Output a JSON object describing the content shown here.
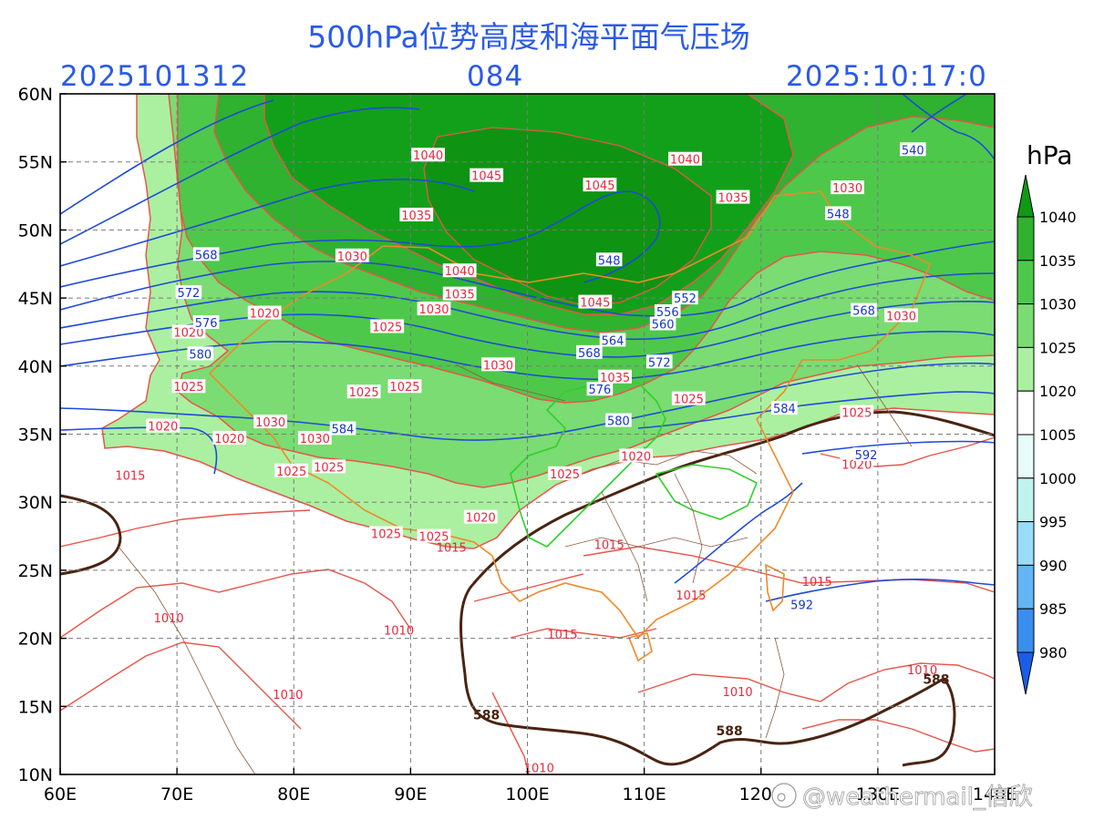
{
  "title": "500hPa位势高度和海平面气压场",
  "run": {
    "init": "2025101312",
    "forecast_hour": "084",
    "valid": "2025:10:17:0"
  },
  "axes": {
    "lon_ticks": [
      "60E",
      "70E",
      "80E",
      "90E",
      "100E",
      "110E",
      "120E",
      "130E",
      "140E"
    ],
    "lat_ticks": [
      "60N",
      "55N",
      "50N",
      "45N",
      "40N",
      "35N",
      "30N",
      "25N",
      "20N",
      "15N",
      "10N"
    ]
  },
  "colorbar": {
    "unit": "hPa",
    "levels": [
      "1040",
      "1035",
      "1030",
      "1025",
      "1020",
      "1005",
      "1000",
      "995",
      "990",
      "985",
      "980"
    ],
    "colors": [
      "#0e9a14",
      "#2eb230",
      "#4ec84a",
      "#7adc72",
      "#aaf0a0",
      "#ffffff",
      "#e6fcf8",
      "#c0f2ee",
      "#98dcf8",
      "#62b6f4",
      "#3a8ef0",
      "#1a5ee6"
    ]
  },
  "pressure_labels": {
    "isobars": [
      {
        "text": "1040",
        "lon": 91.5,
        "lat": 55.5
      },
      {
        "text": "1045",
        "lon": 96.5,
        "lat": 54.0
      },
      {
        "text": "1040",
        "lon": 113.5,
        "lat": 55.2
      },
      {
        "text": "1045",
        "lon": 106.2,
        "lat": 53.3
      },
      {
        "text": "1035",
        "lon": 90.5,
        "lat": 51.1
      },
      {
        "text": "1035",
        "lon": 117.6,
        "lat": 52.4
      },
      {
        "text": "1030",
        "lon": 127.4,
        "lat": 53.1
      },
      {
        "text": "1030",
        "lon": 85.0,
        "lat": 48.1
      },
      {
        "text": "1040",
        "lon": 94.2,
        "lat": 47.0
      },
      {
        "text": "1035",
        "lon": 94.2,
        "lat": 45.3
      },
      {
        "text": "1045",
        "lon": 105.8,
        "lat": 44.7
      },
      {
        "text": "1030",
        "lon": 92.0,
        "lat": 44.2
      },
      {
        "text": "1020",
        "lon": 77.5,
        "lat": 43.9
      },
      {
        "text": "1025",
        "lon": 88.0,
        "lat": 42.9
      },
      {
        "text": "1020",
        "lon": 71.0,
        "lat": 42.5
      },
      {
        "text": "1030",
        "lon": 132.0,
        "lat": 43.7
      },
      {
        "text": "1030",
        "lon": 97.5,
        "lat": 40.1
      },
      {
        "text": "1035",
        "lon": 107.5,
        "lat": 39.2
      },
      {
        "text": "1025",
        "lon": 71.0,
        "lat": 38.5
      },
      {
        "text": "1025",
        "lon": 86.0,
        "lat": 38.1
      },
      {
        "text": "1025",
        "lon": 89.5,
        "lat": 38.5
      },
      {
        "text": "1025",
        "lon": 113.8,
        "lat": 37.6
      },
      {
        "text": "1025",
        "lon": 128.2,
        "lat": 36.6
      },
      {
        "text": "1030",
        "lon": 78.0,
        "lat": 35.9
      },
      {
        "text": "1020",
        "lon": 68.8,
        "lat": 35.6
      },
      {
        "text": "1020",
        "lon": 74.5,
        "lat": 34.7
      },
      {
        "text": "1030",
        "lon": 81.8,
        "lat": 34.7
      },
      {
        "text": "1020",
        "lon": 109.3,
        "lat": 33.4
      },
      {
        "text": "1020",
        "lon": 128.2,
        "lat": 32.8
      },
      {
        "text": "1025",
        "lon": 79.8,
        "lat": 32.3
      },
      {
        "text": "1025",
        "lon": 83.0,
        "lat": 32.6
      },
      {
        "text": "1025",
        "lon": 103.2,
        "lat": 32.1
      },
      {
        "text": "1015",
        "lon": 66.0,
        "lat": 32.0
      },
      {
        "text": "1020",
        "lon": 96.0,
        "lat": 28.9
      },
      {
        "text": "1025",
        "lon": 87.9,
        "lat": 27.7
      },
      {
        "text": "1025",
        "lon": 92.0,
        "lat": 27.5
      },
      {
        "text": "1015",
        "lon": 93.5,
        "lat": 26.7
      },
      {
        "text": "1015",
        "lon": 107.0,
        "lat": 26.9
      },
      {
        "text": "1015",
        "lon": 124.8,
        "lat": 24.2
      },
      {
        "text": "1015",
        "lon": 114.0,
        "lat": 23.2
      },
      {
        "text": "1010",
        "lon": 69.3,
        "lat": 21.5
      },
      {
        "text": "1010",
        "lon": 89.0,
        "lat": 20.6
      },
      {
        "text": "1015",
        "lon": 103.0,
        "lat": 20.3
      },
      {
        "text": "1010",
        "lon": 79.5,
        "lat": 15.9
      },
      {
        "text": "1010",
        "lon": 118.0,
        "lat": 16.1
      },
      {
        "text": "1010",
        "lon": 133.8,
        "lat": 17.7
      },
      {
        "text": "1010",
        "lon": 101.0,
        "lat": 10.5
      }
    ],
    "heights": [
      {
        "text": "540",
        "lon": 133.0,
        "lat": 55.9
      },
      {
        "text": "548",
        "lon": 126.6,
        "lat": 51.2
      },
      {
        "text": "548",
        "lon": 107.0,
        "lat": 47.8
      },
      {
        "text": "568",
        "lon": 72.5,
        "lat": 48.2
      },
      {
        "text": "572",
        "lon": 71.0,
        "lat": 45.4
      },
      {
        "text": "576",
        "lon": 72.5,
        "lat": 43.2
      },
      {
        "text": "580",
        "lon": 72.0,
        "lat": 40.9
      },
      {
        "text": "552",
        "lon": 113.5,
        "lat": 45.0
      },
      {
        "text": "556",
        "lon": 112.0,
        "lat": 44.0
      },
      {
        "text": "560",
        "lon": 111.6,
        "lat": 43.1
      },
      {
        "text": "568",
        "lon": 128.8,
        "lat": 44.1
      },
      {
        "text": "564",
        "lon": 107.3,
        "lat": 41.9
      },
      {
        "text": "568",
        "lon": 105.3,
        "lat": 41.0
      },
      {
        "text": "572",
        "lon": 111.3,
        "lat": 40.3
      },
      {
        "text": "576",
        "lon": 106.2,
        "lat": 38.3
      },
      {
        "text": "580",
        "lon": 107.8,
        "lat": 36.0
      },
      {
        "text": "584",
        "lon": 84.2,
        "lat": 35.4
      },
      {
        "text": "584",
        "lon": 122.0,
        "lat": 36.9
      },
      {
        "text": "592",
        "lon": 129.0,
        "lat": 33.5
      },
      {
        "text": "592",
        "lon": 123.5,
        "lat": 22.5
      }
    ],
    "ridge_588": [
      {
        "text": "588",
        "lon": 96.5,
        "lat": 14.4
      },
      {
        "text": "588",
        "lon": 117.3,
        "lat": 13.2
      },
      {
        "text": "588",
        "lon": 135.0,
        "lat": 17.0
      }
    ]
  },
  "watermark": "@weathermail_信欣"
}
